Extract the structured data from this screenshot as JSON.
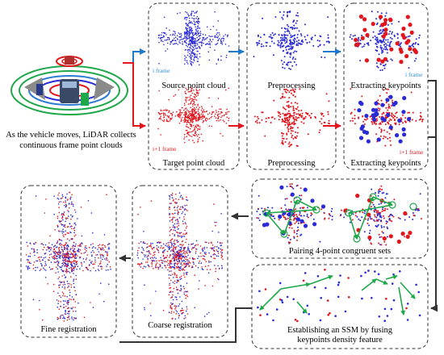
{
  "vehicle_caption": [
    "As the vehicle moves, LiDAR collects",
    "continuous frame point clouds"
  ],
  "panels": {
    "source": {
      "label": "Source point cloud",
      "frame": "i frame"
    },
    "target": {
      "label": "Target point cloud",
      "frame": "i+1 frame"
    },
    "pre_src": {
      "label": "Preprocessing"
    },
    "pre_tgt": {
      "label": "Preprocessing"
    },
    "kp_src": {
      "label": "Extracting keypoints",
      "frame": "i frame"
    },
    "kp_tgt": {
      "label": "Extracting keypoints",
      "frame": "i+1 frame"
    },
    "pairing": {
      "label": "Pairing 4-point congruent sets"
    },
    "ssm": {
      "label": "Establishing an SSM by fusing",
      "label2": "keypoints density feature"
    },
    "coarse": {
      "label": "Coarse registration"
    },
    "fine": {
      "label": "Fine registration"
    }
  },
  "colors": {
    "source_blue": "#2a2ad6",
    "target_red": "#e0161c",
    "arrow_blue": "#1f78c8",
    "arrow_red": "#e0161c",
    "arrow_dark": "#333333",
    "match_green": "#1ea84a",
    "frame_label_blue": "#2e8fe0",
    "frame_label_red": "#e0161c"
  }
}
